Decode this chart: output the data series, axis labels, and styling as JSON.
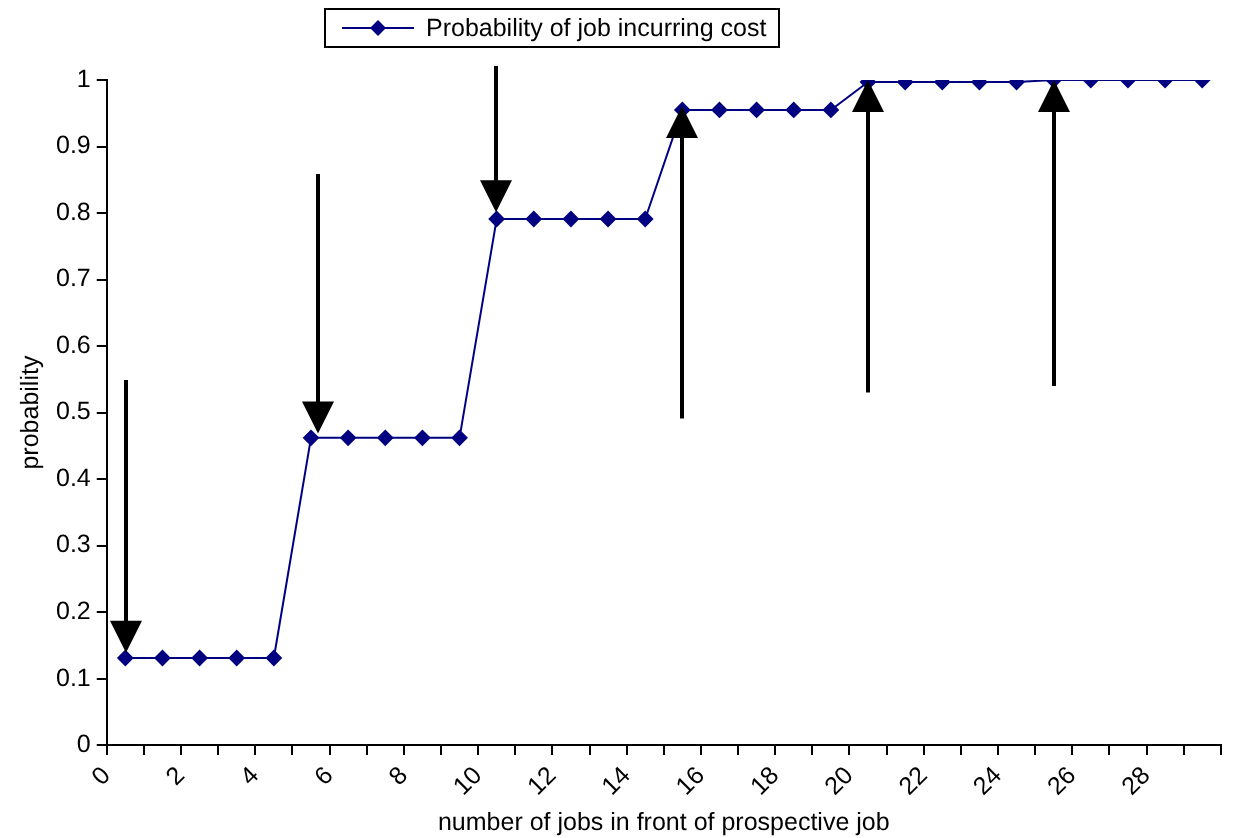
{
  "chart_data": {
    "type": "line",
    "xlabel": "number of jobs in front of prospective job",
    "ylabel": "probability",
    "x": [
      0.5,
      1.5,
      2.5,
      3.5,
      4.5,
      5.5,
      6.5,
      7.5,
      8.5,
      9.5,
      10.5,
      11.5,
      12.5,
      13.5,
      14.5,
      15.5,
      16.5,
      17.5,
      18.5,
      19.5,
      20.5,
      21.5,
      22.5,
      23.5,
      24.5,
      25.5,
      26.5,
      27.5,
      28.5,
      29.5
    ],
    "series": [
      {
        "name": "Probability of job incurring cost",
        "color": "#000080",
        "values": [
          0.131,
          0.131,
          0.131,
          0.131,
          0.131,
          0.462,
          0.462,
          0.462,
          0.462,
          0.462,
          0.791,
          0.791,
          0.791,
          0.791,
          0.791,
          0.955,
          0.955,
          0.955,
          0.955,
          0.955,
          0.997,
          0.997,
          0.997,
          0.997,
          0.997,
          1.0,
          1.0,
          1.0,
          1.0,
          1.0
        ]
      }
    ],
    "xlim": [
      0,
      30
    ],
    "xticks": [
      0,
      {
        "value": 1,
        "label": null
      },
      2,
      {
        "value": 3,
        "label": null
      },
      4,
      {
        "value": 5,
        "label": null
      },
      6,
      {
        "value": 7,
        "label": null
      },
      8,
      {
        "value": 9,
        "label": null
      },
      10,
      {
        "value": 11,
        "label": null
      },
      12,
      {
        "value": 13,
        "label": null
      },
      14,
      {
        "value": 15,
        "label": null
      },
      16,
      {
        "value": 17,
        "label": null
      },
      18,
      {
        "value": 19,
        "label": null
      },
      20,
      {
        "value": 21,
        "label": null
      },
      22,
      {
        "value": 23,
        "label": null
      },
      24,
      {
        "value": 25,
        "label": null
      },
      26,
      {
        "value": 27,
        "label": null
      },
      28,
      {
        "value": 29,
        "label": null
      },
      {
        "value": 30,
        "label": null
      }
    ],
    "ylim": [
      0,
      1
    ],
    "yticks": [
      0,
      0.1,
      0.2,
      0.3,
      0.4,
      0.5,
      0.6,
      0.7,
      0.8,
      0.9,
      1
    ],
    "grid": false,
    "legend": "top",
    "marker": "diamond",
    "line_style": "solid"
  }
}
